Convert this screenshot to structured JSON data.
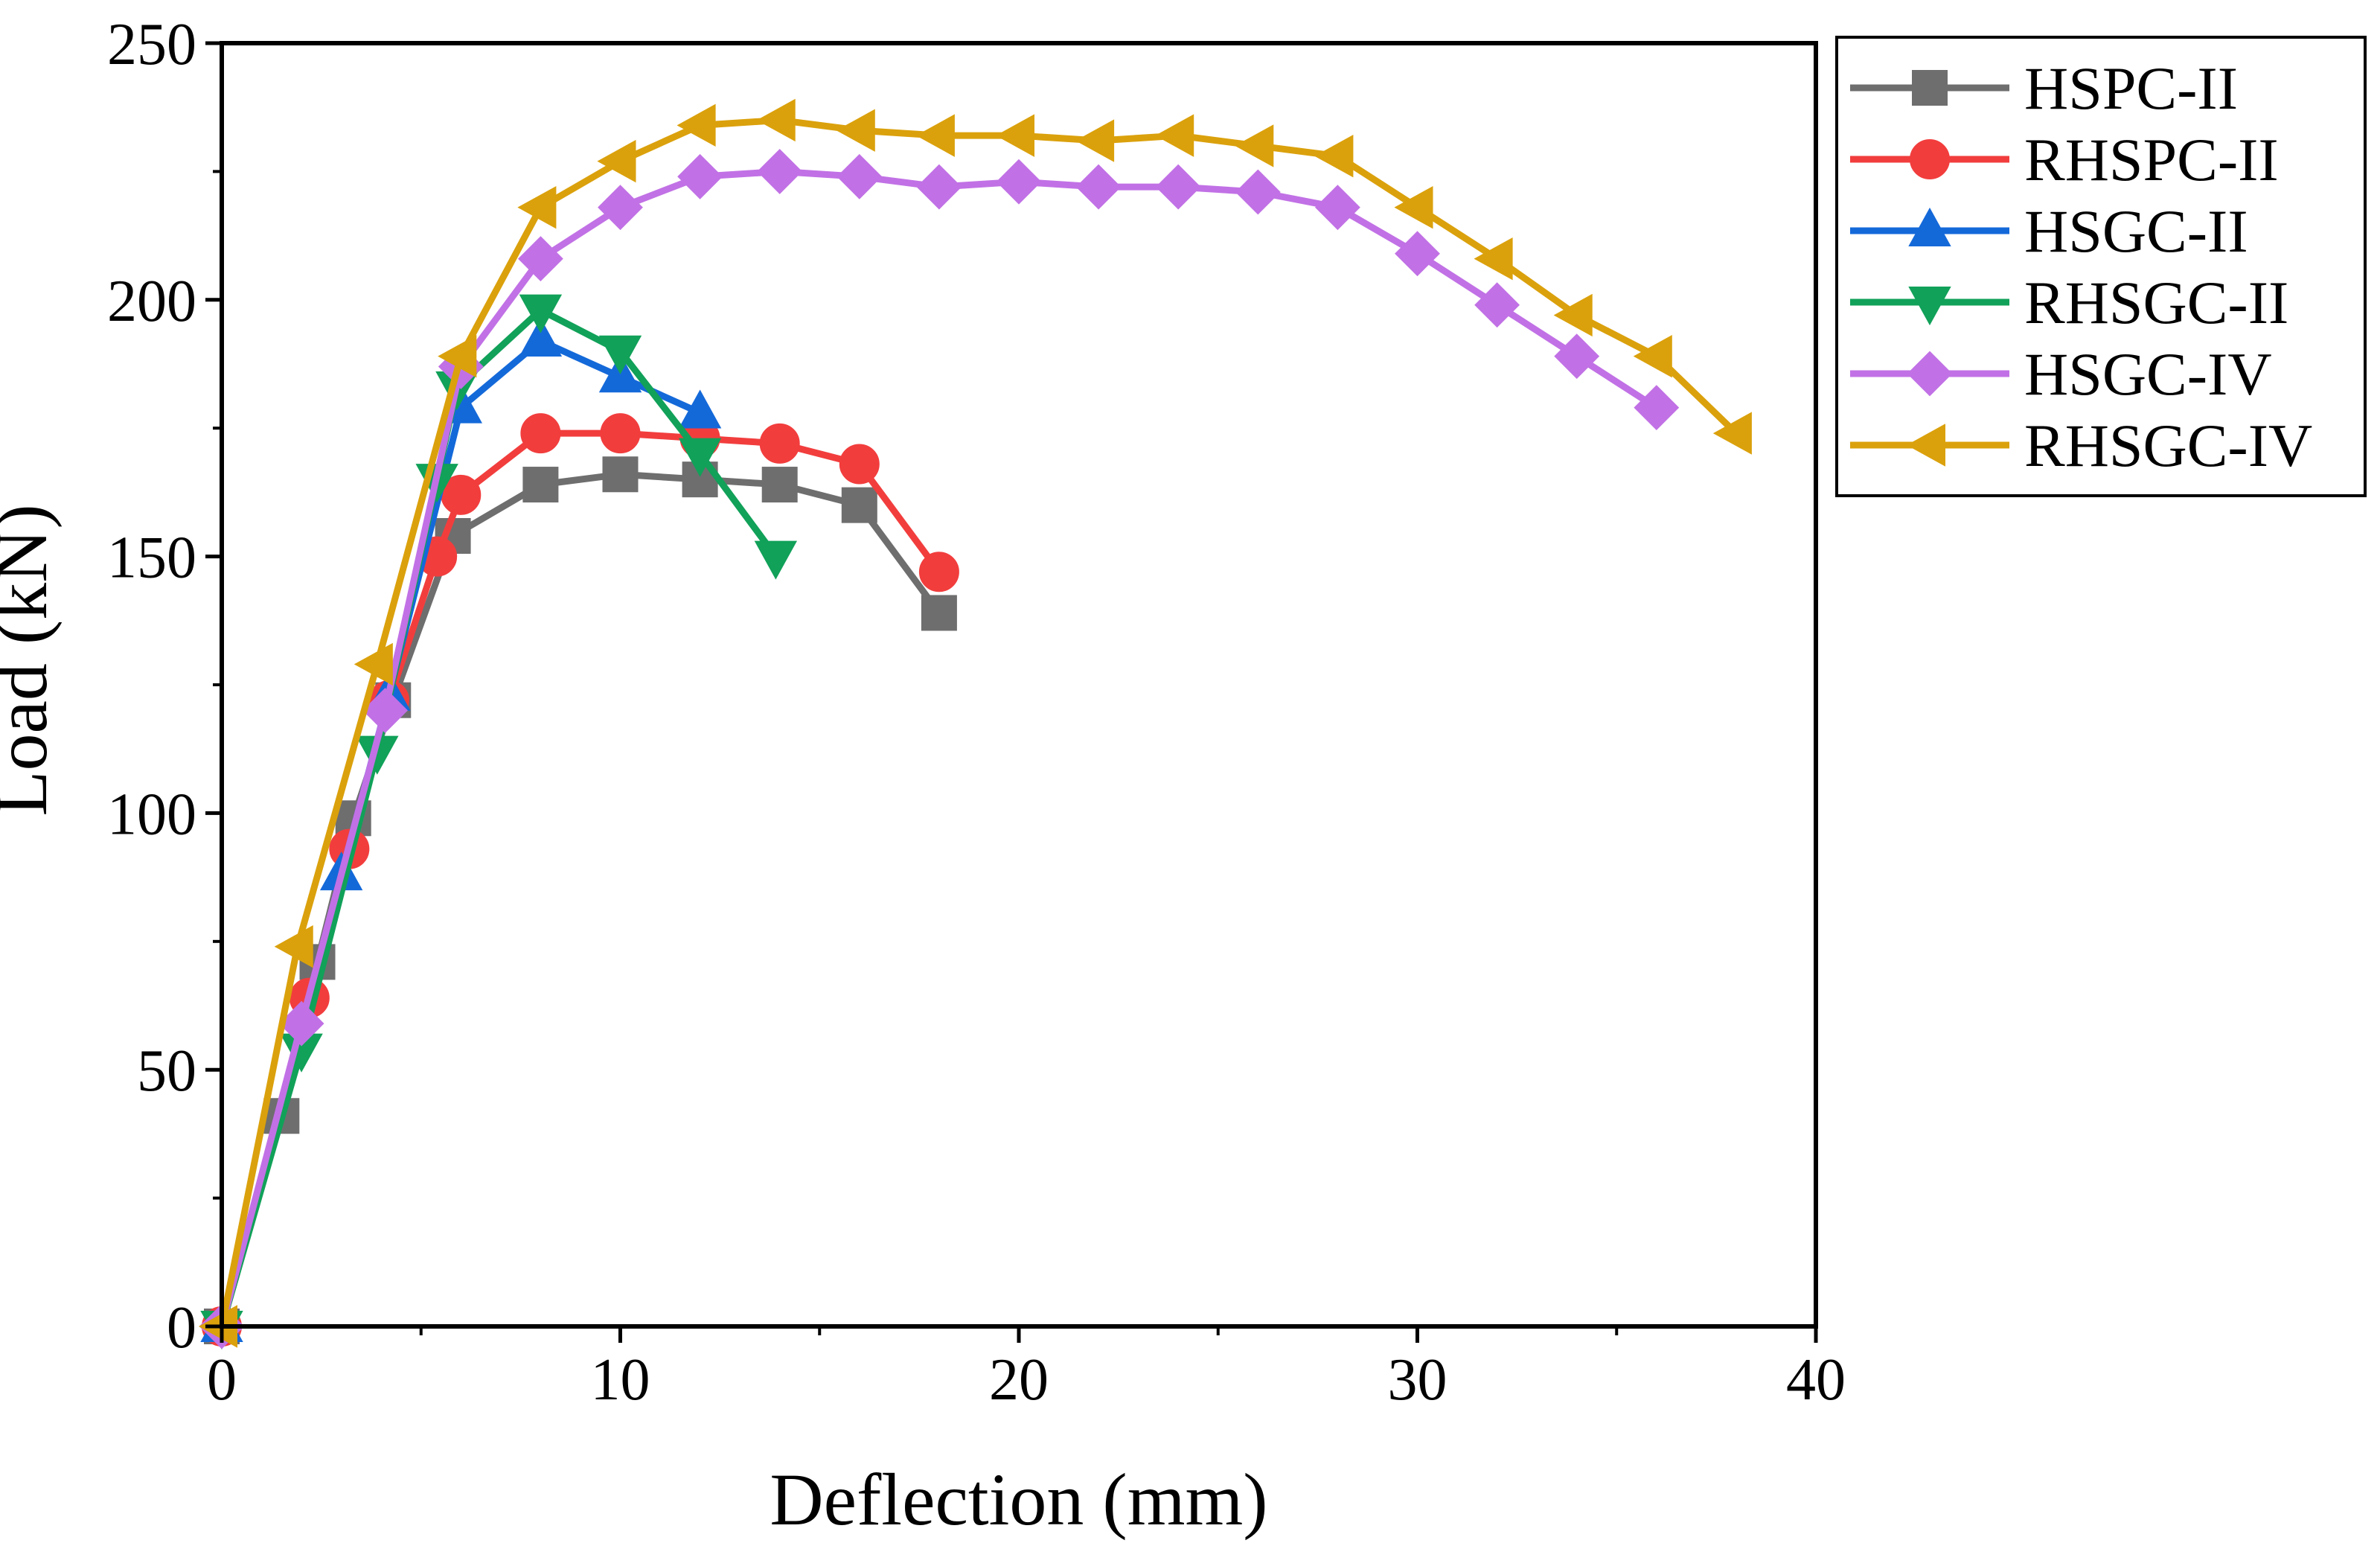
{
  "chart_data": {
    "type": "line",
    "title": "",
    "xlabel": "Deflection (mm)",
    "ylabel": "Load (kN)",
    "xlim": [
      0,
      40
    ],
    "ylim": [
      0,
      250
    ],
    "xticks": [
      0,
      10,
      20,
      30,
      40
    ],
    "yticks": [
      0,
      50,
      100,
      150,
      200,
      250
    ],
    "grid": false,
    "legend_position": "outside-right-top",
    "series": [
      {
        "name": "HSPC-II",
        "color": "#6e6e6e",
        "marker": "square",
        "points": [
          [
            0,
            0
          ],
          [
            1.5,
            41
          ],
          [
            2.4,
            71
          ],
          [
            3.3,
            99
          ],
          [
            4.3,
            122
          ],
          [
            5.8,
            154
          ],
          [
            8,
            164
          ],
          [
            10,
            166
          ],
          [
            12,
            165
          ],
          [
            14,
            164
          ],
          [
            16,
            160
          ],
          [
            18,
            139
          ]
        ]
      },
      {
        "name": "RHSPC-II",
        "color": "#f23d3d",
        "marker": "circle",
        "points": [
          [
            0,
            0
          ],
          [
            2.2,
            64
          ],
          [
            3.2,
            93
          ],
          [
            4.2,
            122
          ],
          [
            5.4,
            150
          ],
          [
            6,
            162
          ],
          [
            8,
            174
          ],
          [
            10,
            174
          ],
          [
            12,
            173
          ],
          [
            14,
            172
          ],
          [
            16,
            168
          ],
          [
            18,
            147
          ]
        ]
      },
      {
        "name": "HSGC-II",
        "color": "#1469d9",
        "marker": "triangle-up",
        "points": [
          [
            0,
            0
          ],
          [
            3,
            88
          ],
          [
            4.2,
            123
          ],
          [
            6,
            179
          ],
          [
            8,
            192
          ],
          [
            10,
            185
          ],
          [
            12,
            178
          ]
        ]
      },
      {
        "name": "RHSGC-II",
        "color": "#11a159",
        "marker": "triangle-down",
        "points": [
          [
            0,
            0
          ],
          [
            2,
            54
          ],
          [
            3.9,
            112
          ],
          [
            5.4,
            165
          ],
          [
            5.9,
            183
          ],
          [
            8,
            198
          ],
          [
            10,
            190
          ],
          [
            12,
            170
          ],
          [
            13.9,
            150
          ]
        ]
      },
      {
        "name": "HSGC-IV",
        "color": "#c171e5",
        "marker": "diamond",
        "points": [
          [
            0,
            0
          ],
          [
            2,
            59
          ],
          [
            4.1,
            120
          ],
          [
            6,
            187
          ],
          [
            8,
            208
          ],
          [
            10,
            218
          ],
          [
            12,
            224
          ],
          [
            14,
            225
          ],
          [
            16,
            224
          ],
          [
            18,
            222
          ],
          [
            20,
            223
          ],
          [
            22,
            222
          ],
          [
            24,
            222
          ],
          [
            26,
            221
          ],
          [
            28,
            218
          ],
          [
            30,
            209
          ],
          [
            32,
            199
          ],
          [
            34,
            189
          ],
          [
            36,
            179
          ]
        ]
      },
      {
        "name": "RHSGC-IV",
        "color": "#dba10c",
        "marker": "triangle-left",
        "points": [
          [
            0,
            0
          ],
          [
            1.9,
            74
          ],
          [
            3.9,
            129
          ],
          [
            6,
            189
          ],
          [
            8,
            218
          ],
          [
            10,
            227
          ],
          [
            12,
            234
          ],
          [
            14,
            235
          ],
          [
            16,
            233
          ],
          [
            18,
            232
          ],
          [
            20,
            232
          ],
          [
            22,
            231
          ],
          [
            24,
            232
          ],
          [
            26,
            230
          ],
          [
            28,
            228
          ],
          [
            30,
            218
          ],
          [
            32,
            208
          ],
          [
            34,
            197
          ],
          [
            36,
            189
          ],
          [
            38,
            174
          ]
        ]
      }
    ]
  }
}
